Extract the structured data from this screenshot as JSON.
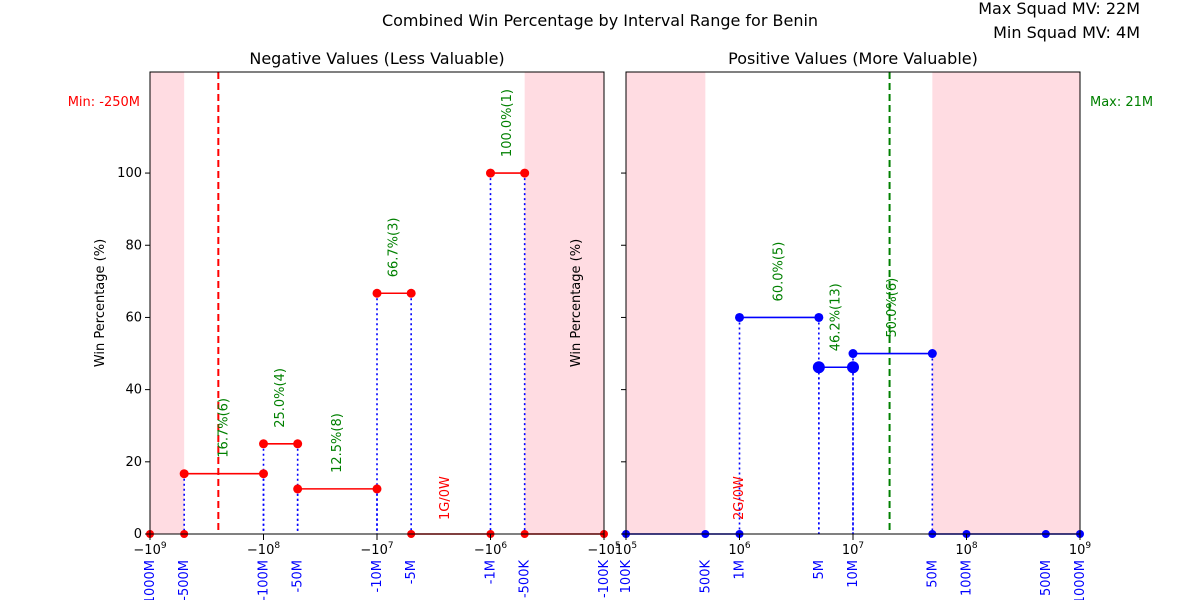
{
  "figure": {
    "title": "Combined Win Percentage by Interval Range for Benin",
    "max_squad": "Max Squad MV: 22M",
    "min_squad": "Min Squad MV: 4M"
  },
  "chart_data": [
    {
      "type": "line",
      "subtitle": "Negative Values (Less Valuable)",
      "xscale": "symlog",
      "xlim": [
        -1000000000,
        -100000
      ],
      "ylim": [
        0,
        128
      ],
      "ylabel": "Win Percentage (%)",
      "yticks": [
        "0",
        "20",
        "40",
        "60",
        "80",
        "100"
      ],
      "ytick_values": [
        0,
        20,
        40,
        60,
        80,
        100
      ],
      "grid": false,
      "line_color": "#ff0000",
      "dotted_color": "#0000ff",
      "label_color": "#008000",
      "shaded_color": "#ffc0cb",
      "marker_line": {
        "value": -250000000,
        "label": "Min: -250M",
        "color": "#ff0000"
      },
      "xticks_major": [
        "−10^9",
        "−10^8",
        "−10^7",
        "−10^6",
        "−10^5"
      ],
      "xticks_major_values": [
        -1000000000,
        -100000000,
        -10000000,
        -1000000,
        -100000
      ],
      "xticks_minor_labels": [
        "-1000M",
        "-500M",
        "-100M",
        "-50M",
        "-10M",
        "-5M",
        "-1M",
        "-500K",
        "-100K"
      ],
      "xticks_minor_values": [
        -1000000000,
        -500000000,
        -100000000,
        -50000000,
        -10000000,
        -5000000,
        -1000000,
        -500000,
        -100000
      ],
      "shaded_ranges": [
        [
          -1000000000,
          -500000000
        ],
        [
          -500000,
          -100000
        ]
      ],
      "steps": [
        {
          "x0": -500000000,
          "x1": -100000000,
          "y": 16.7,
          "label": "16.7%(6)"
        },
        {
          "x0": -100000000,
          "x1": -50000000,
          "y": 25.0,
          "label": "25.0%(4)"
        },
        {
          "x0": -50000000,
          "x1": -10000000,
          "y": 12.5,
          "label": "12.5%(8)"
        },
        {
          "x0": -10000000,
          "x1": -5000000,
          "y": 66.7,
          "label": "66.7%(3)"
        },
        {
          "x0": -1000000,
          "x1": -500000,
          "y": 100.0,
          "label": "100.0%(1)"
        }
      ],
      "zero_points": [
        -1000000000,
        -500000000,
        -5000000,
        -1000000,
        -500000,
        -100000
      ],
      "zero_segments": [
        [
          -5000000,
          -1000000
        ],
        [
          -500000,
          -100000
        ]
      ],
      "annotations": [
        {
          "x": -2500000,
          "label": "1G/0W",
          "color": "#ff0000"
        }
      ]
    },
    {
      "type": "line",
      "subtitle": "Positive Values (More Valuable)",
      "xscale": "symlog",
      "xlim": [
        100000,
        1000000000
      ],
      "ylim": [
        0,
        128
      ],
      "ylabel": "Win Percentage (%)",
      "grid": false,
      "line_color": "#0000ff",
      "dotted_color": "#0000ff",
      "label_color": "#008000",
      "shaded_color": "#ffc0cb",
      "marker_line": {
        "value": 21000000,
        "label": "Max: 21M",
        "color": "#008000"
      },
      "xticks_major": [
        "10^5",
        "10^6",
        "10^7",
        "10^8",
        "10^9"
      ],
      "xticks_major_values": [
        100000,
        1000000,
        10000000,
        100000000,
        1000000000
      ],
      "xticks_minor_labels": [
        "100K",
        "500K",
        "1M",
        "5M",
        "10M",
        "50M",
        "100M",
        "500M",
        "1000M"
      ],
      "xticks_minor_values": [
        100000,
        500000,
        1000000,
        5000000,
        10000000,
        50000000,
        100000000,
        500000000,
        1000000000
      ],
      "shaded_ranges": [
        [
          100000,
          500000
        ],
        [
          50000000,
          1000000000
        ]
      ],
      "steps": [
        {
          "x0": 1000000,
          "x1": 5000000,
          "y": 60.0,
          "label": "60.0%(5)"
        },
        {
          "x0": 5000000,
          "x1": 10000000,
          "y": 46.2,
          "label": "46.2%(13)",
          "big_markers": true
        },
        {
          "x0": 10000000,
          "x1": 50000000,
          "y": 50.0,
          "label": "50.0%(6)"
        }
      ],
      "zero_points": [
        100000,
        500000,
        1000000,
        50000000,
        100000000,
        500000000,
        1000000000
      ],
      "zero_segments": [
        [
          100000,
          1000000
        ],
        [
          50000000,
          1000000000
        ]
      ],
      "annotations": [
        {
          "x": 1000000,
          "label": "2G/0W",
          "color": "#ff0000"
        }
      ]
    }
  ]
}
